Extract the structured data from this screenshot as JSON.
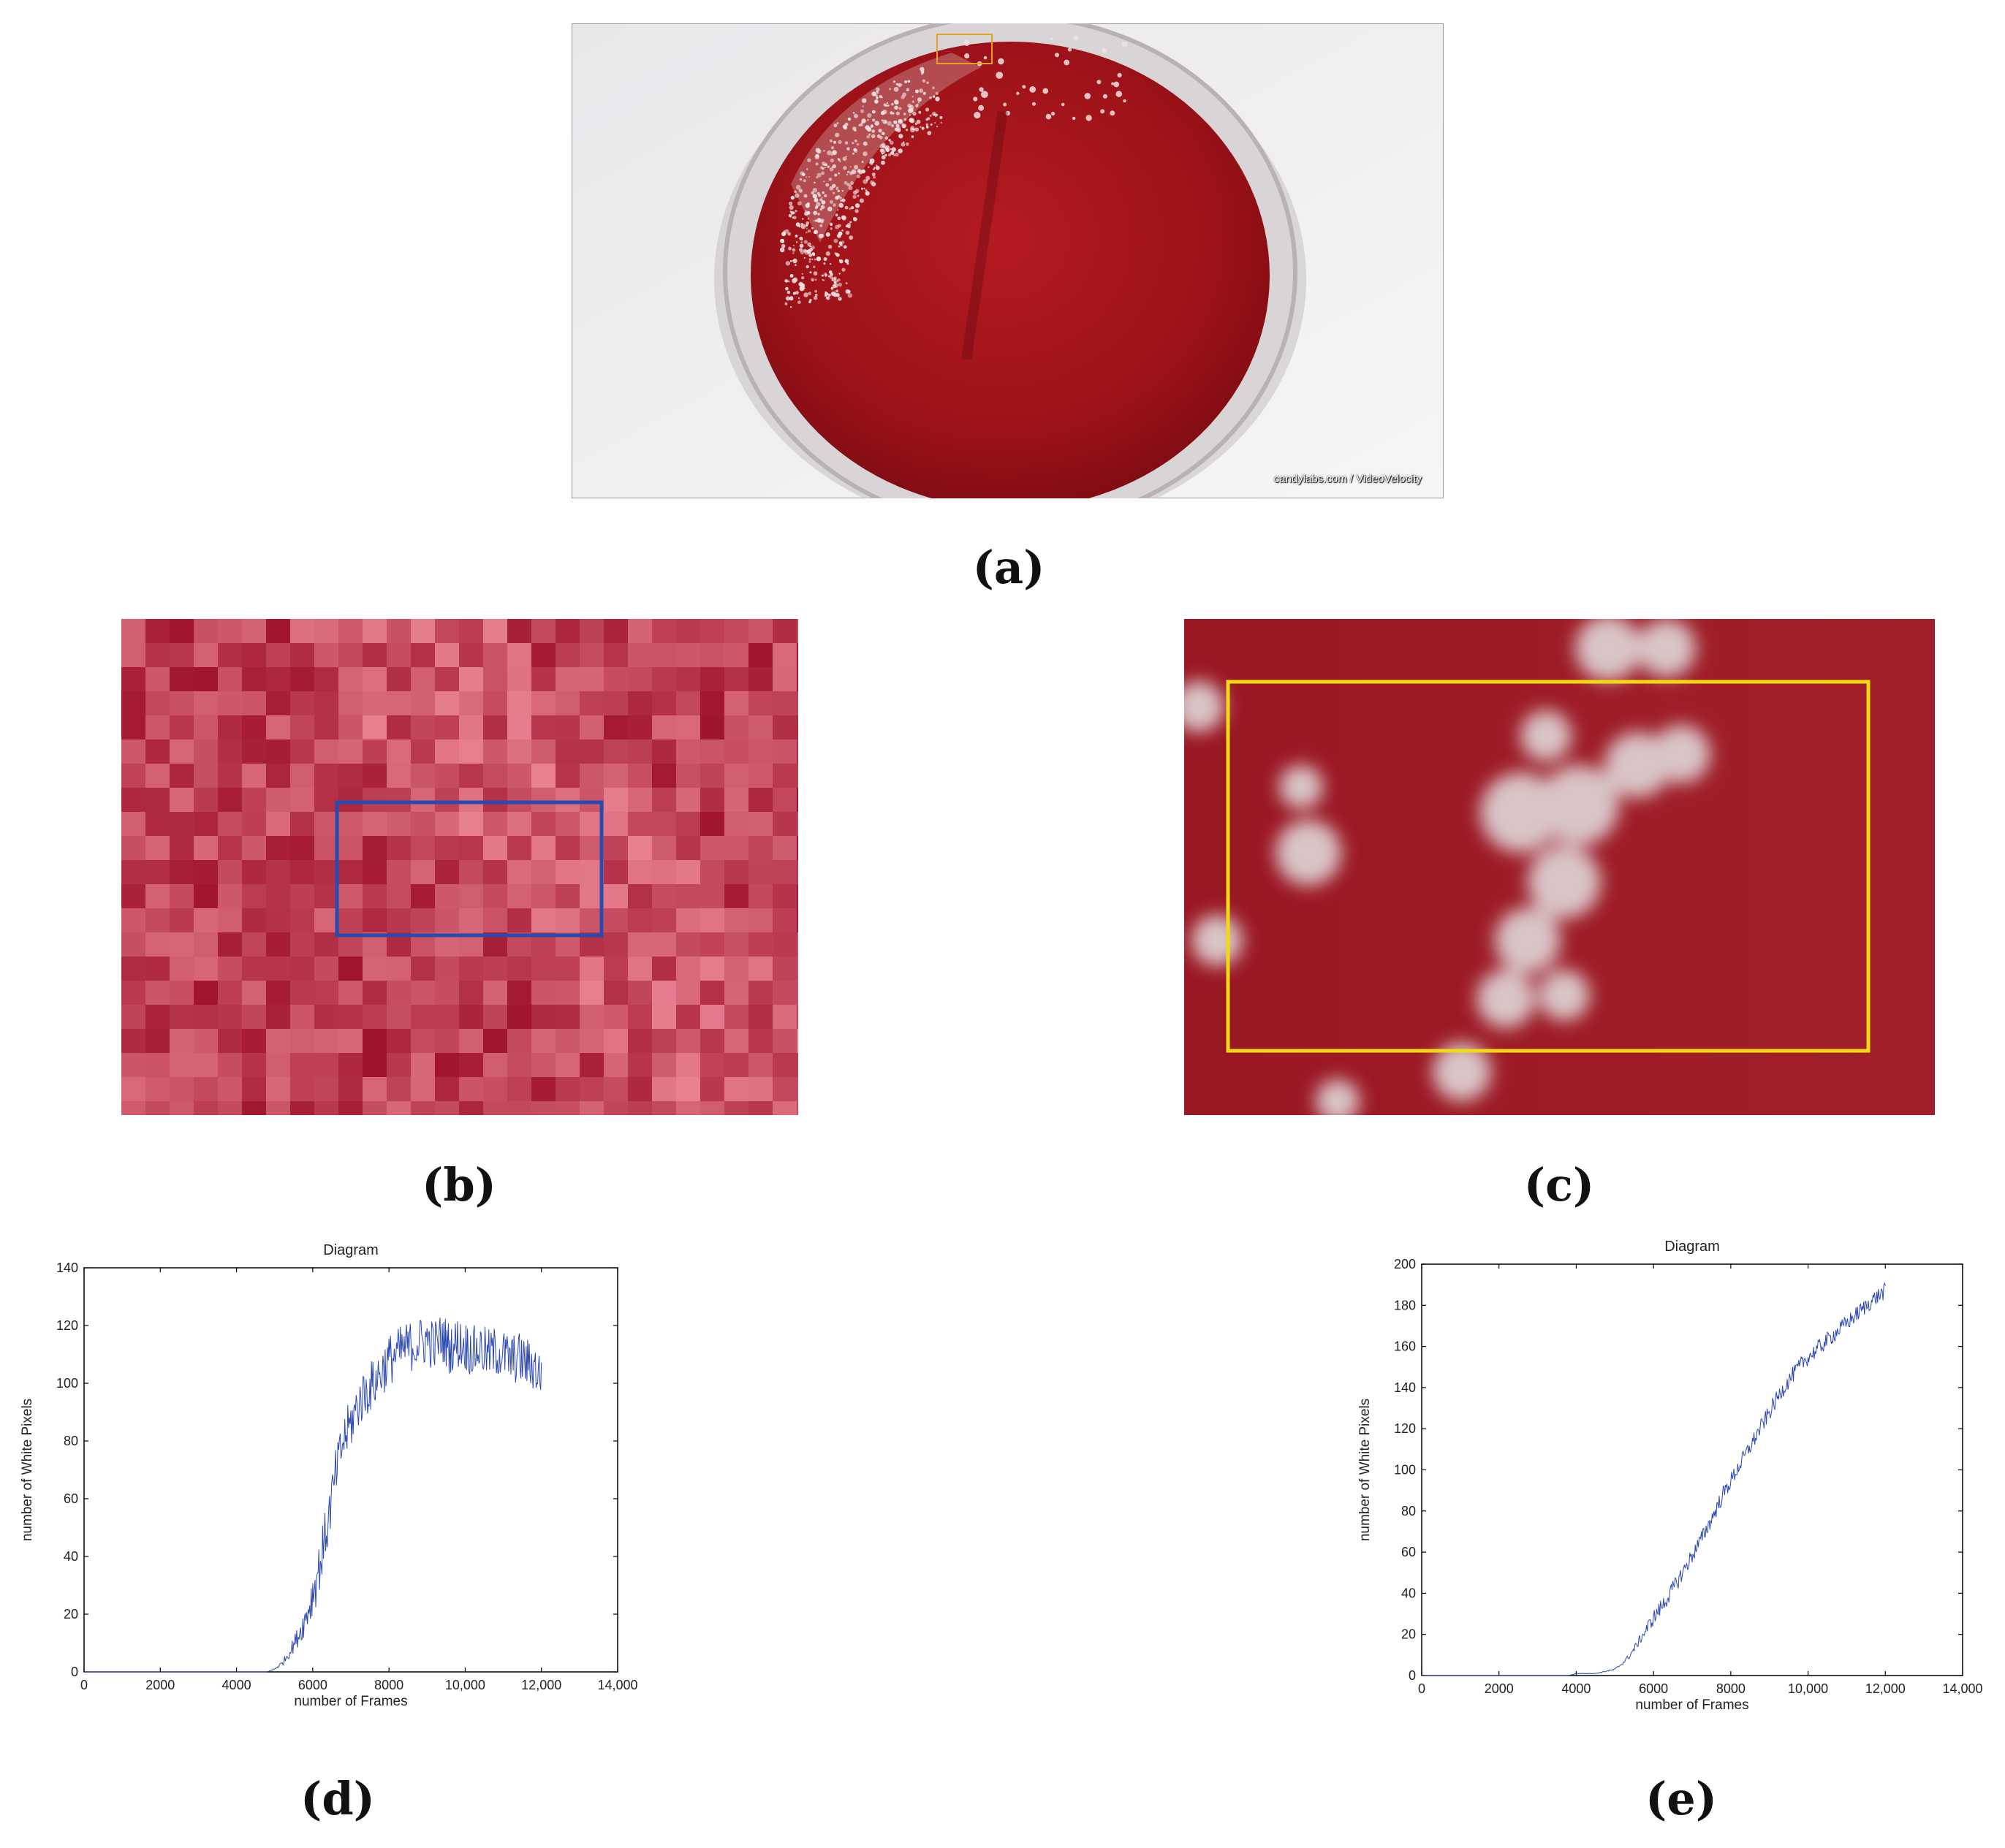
{
  "figure": {
    "captions": {
      "a": "(a)",
      "b": "(b)",
      "c": "(c)",
      "d": "(d)",
      "e": "(e)"
    },
    "photo_credit": "candylabs.com / VideoVelocity",
    "colors": {
      "agar": "#a8141c",
      "highlight_box_b": "#2a4ab0",
      "highlight_box_c": "#f0d812",
      "plot_line": "#2b47b0"
    }
  },
  "chart_data": [
    {
      "type": "line",
      "title": "Diagram",
      "xlabel": "number of Frames",
      "ylabel": "number of White Pixels",
      "xlim": [
        0,
        14000
      ],
      "ylim": [
        0,
        140
      ],
      "xticks": [
        0,
        2000,
        4000,
        6000,
        8000,
        10000,
        12000,
        14000
      ],
      "xtick_labels": [
        "0",
        "2000",
        "4000",
        "6000",
        "8000",
        "10,000",
        "12,000",
        "14,000"
      ],
      "yticks": [
        0,
        20,
        40,
        60,
        80,
        100,
        120,
        140
      ],
      "ytick_labels": [
        "0",
        "20",
        "40",
        "60",
        "80",
        "100",
        "120",
        "140"
      ],
      "series": [
        {
          "x": [
            0,
            1000,
            2000,
            3000,
            4000,
            4500,
            4800,
            5000,
            5200,
            5400,
            5600,
            5800,
            6000,
            6200,
            6400,
            6600,
            6800,
            7000,
            7200,
            7400,
            7600,
            7800,
            8000,
            8200,
            8400,
            8600,
            8800,
            9000,
            9200,
            9400,
            9600,
            9800,
            10000,
            10200,
            10400,
            10600,
            10800,
            11000,
            11200,
            11400,
            11600,
            11800,
            12000
          ],
          "values": [
            0,
            0,
            0,
            0,
            0,
            0,
            0,
            1,
            3,
            7,
            12,
            18,
            27,
            38,
            52,
            68,
            80,
            86,
            93,
            97,
            100,
            104,
            108,
            110,
            112,
            113,
            114,
            115,
            113,
            116,
            112,
            114,
            113,
            111,
            112,
            110,
            111,
            110,
            108,
            109,
            107,
            106,
            102
          ],
          "noise": 9
        }
      ]
    },
    {
      "type": "line",
      "title": "Diagram",
      "xlabel": "number of Frames",
      "ylabel": "number of White Pixels",
      "xlim": [
        0,
        14000
      ],
      "ylim": [
        0,
        200
      ],
      "xticks": [
        0,
        2000,
        4000,
        6000,
        8000,
        10000,
        12000,
        14000
      ],
      "xtick_labels": [
        "0",
        "2000",
        "4000",
        "6000",
        "8000",
        "10,000",
        "12,000",
        "14,000"
      ],
      "yticks": [
        0,
        20,
        40,
        60,
        80,
        100,
        120,
        140,
        160,
        180,
        200
      ],
      "ytick_labels": [
        "0",
        "20",
        "40",
        "60",
        "80",
        "100",
        "120",
        "140",
        "160",
        "180",
        "200"
      ],
      "series": [
        {
          "x": [
            0,
            1000,
            2000,
            3000,
            3800,
            4000,
            4500,
            5000,
            5200,
            5400,
            5600,
            5800,
            6000,
            6300,
            6600,
            6900,
            7200,
            7500,
            7800,
            8100,
            8400,
            8700,
            9000,
            9300,
            9600,
            9900,
            10200,
            10500,
            10800,
            11100,
            11400,
            11700,
            12000
          ],
          "values": [
            0,
            0,
            0,
            0,
            0,
            1,
            1,
            3,
            6,
            10,
            16,
            22,
            28,
            36,
            45,
            55,
            65,
            76,
            88,
            98,
            108,
            118,
            128,
            138,
            146,
            153,
            158,
            163,
            168,
            173,
            178,
            183,
            187
          ],
          "noise": 4
        }
      ]
    }
  ]
}
